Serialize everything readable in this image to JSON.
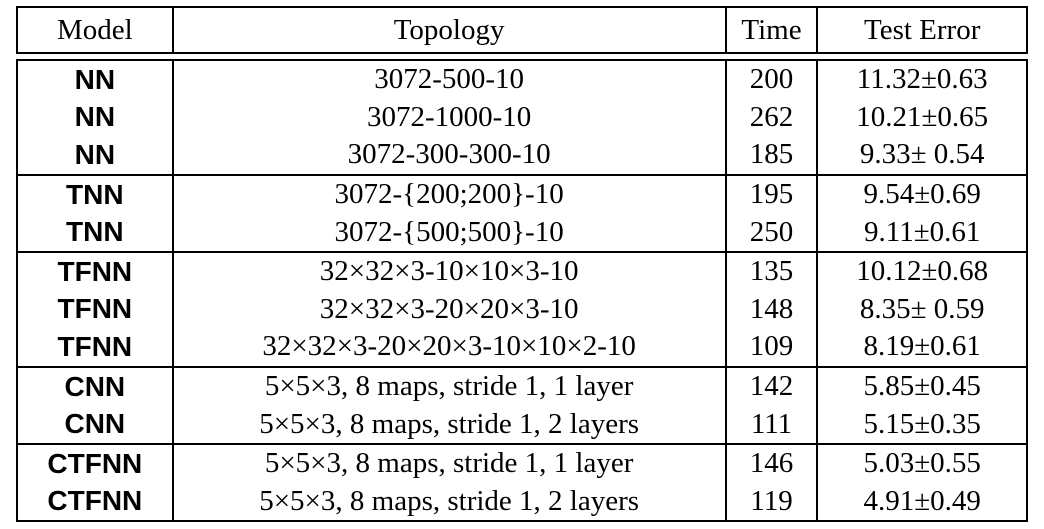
{
  "table": {
    "headers": {
      "model": "Model",
      "topology": "Topology",
      "time": "Time",
      "test_error": "Test Error"
    },
    "rows": [
      {
        "model": "NN",
        "topology": "3072-500-10",
        "time": "200",
        "test_error": "11.32±0.63"
      },
      {
        "model": "NN",
        "topology": "3072-1000-10",
        "time": "262",
        "test_error": "10.21±0.65"
      },
      {
        "model": "NN",
        "topology": "3072-300-300-10",
        "time": "185",
        "test_error": "9.33± 0.54"
      },
      {
        "model": "TNN",
        "topology": "3072-{200;200}-10",
        "time": "195",
        "test_error": "9.54±0.69"
      },
      {
        "model": "TNN",
        "topology": "3072-{500;500}-10",
        "time": "250",
        "test_error": "9.11±0.61"
      },
      {
        "model": "TFNN",
        "topology": "32×32×3-10×10×3-10",
        "time": "135",
        "test_error": "10.12±0.68"
      },
      {
        "model": "TFNN",
        "topology": "32×32×3-20×20×3-10",
        "time": "148",
        "test_error": "8.35± 0.59"
      },
      {
        "model": "TFNN",
        "topology": "32×32×3-20×20×3-10×10×2-10",
        "time": "109",
        "test_error": "8.19±0.61"
      },
      {
        "model": "CNN",
        "topology": "5×5×3, 8 maps, stride 1, 1 layer",
        "time": "142",
        "test_error": "5.85±0.45"
      },
      {
        "model": "CNN",
        "topology": "5×5×3, 8 maps, stride 1, 2 layers",
        "time": "111",
        "test_error": "5.15±0.35"
      },
      {
        "model": "CTFNN",
        "topology": "5×5×3, 8 maps, stride 1, 1 layer",
        "time": "146",
        "test_error": "5.03±0.55"
      },
      {
        "model": "CTFNN",
        "topology": "5×5×3, 8 maps, stride 1, 2 layers",
        "time": "119",
        "test_error": "4.91±0.49"
      }
    ]
  }
}
